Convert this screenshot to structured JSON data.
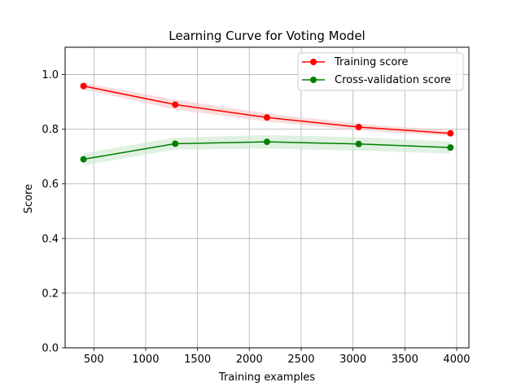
{
  "chart_data": {
    "type": "line",
    "title": "Learning Curve for Voting Model",
    "xlabel": "Training examples",
    "ylabel": "Score",
    "xlim": [
      223,
      4118
    ],
    "ylim": [
      0.0,
      1.1
    ],
    "xticks": [
      500,
      1000,
      1500,
      2000,
      2500,
      3000,
      3500,
      4000
    ],
    "yticks": [
      0.0,
      0.2,
      0.4,
      0.6,
      0.8,
      1.0
    ],
    "xtick_labels": [
      "500",
      "1000",
      "1500",
      "2000",
      "2500",
      "3000",
      "3500",
      "4000"
    ],
    "ytick_labels": [
      "0.0",
      "0.2",
      "0.4",
      "0.6",
      "0.8",
      "1.0"
    ],
    "grid": true,
    "legend_position": "top-right",
    "x": [
      400,
      1285,
      2170,
      3055,
      3940
    ],
    "series": [
      {
        "name": "Training score",
        "color": "#ff0000",
        "band_color": "#f5c6c6",
        "values": [
          0.958,
          0.89,
          0.843,
          0.808,
          0.785
        ],
        "std": [
          0.012,
          0.018,
          0.015,
          0.012,
          0.01
        ]
      },
      {
        "name": "Cross-validation score",
        "color": "#008000",
        "band_color": "#cde8cd",
        "values": [
          0.69,
          0.747,
          0.754,
          0.746,
          0.733
        ],
        "std": [
          0.022,
          0.022,
          0.025,
          0.025,
          0.022
        ]
      }
    ]
  }
}
